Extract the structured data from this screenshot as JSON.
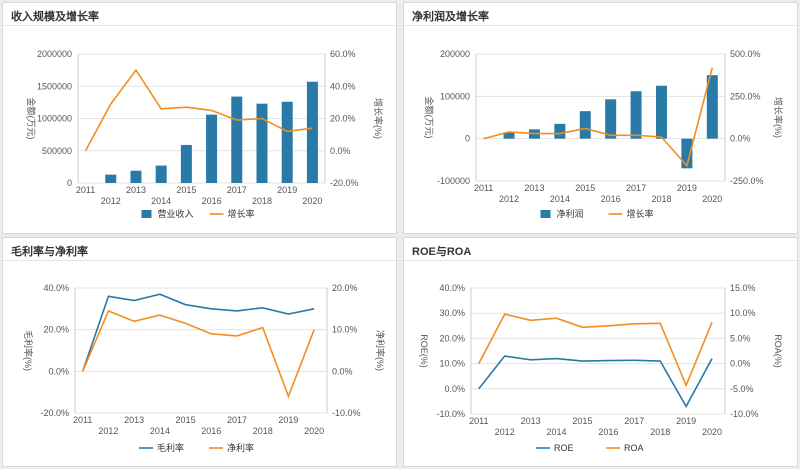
{
  "colors": {
    "bar": "#2a7aa8",
    "orange": "#f28e1e",
    "teal": "#2a7aa8",
    "grid": "#e3e3e3",
    "axis_text": "#555555"
  },
  "chart_data": [
    {
      "id": "revenue",
      "type": "bar",
      "title": "收入规模及增长率",
      "categories": [
        "2011",
        "2012",
        "2013",
        "2014",
        "2015",
        "2016",
        "2017",
        "2018",
        "2019",
        "2020"
      ],
      "series": [
        {
          "name": "营业收入",
          "kind": "bar",
          "axis": "left",
          "values": [
            0,
            130000,
            190000,
            270000,
            590000,
            1060000,
            1340000,
            1230000,
            1260000,
            1570000
          ]
        },
        {
          "name": "增长率",
          "kind": "line",
          "axis": "right",
          "values": [
            0.0,
            29.0,
            50.0,
            26.0,
            27.0,
            25.0,
            19.0,
            20.0,
            12.0,
            14.0
          ]
        }
      ],
      "y_left": {
        "label": "金额(万元)",
        "min": 0,
        "max": 2000000,
        "ticks": [
          "0",
          "500000",
          "1000000",
          "1500000",
          "2000000"
        ]
      },
      "y_right": {
        "label": "增长率(%)",
        "min": -20,
        "max": 60,
        "ticks": [
          "-20.0%",
          "0.0%",
          "20.0%",
          "40.0%",
          "60.0%"
        ]
      },
      "legend": [
        "营业收入",
        "增长率"
      ]
    },
    {
      "id": "netprofit",
      "type": "bar",
      "title": "净利润及增长率",
      "categories": [
        "2011",
        "2012",
        "2013",
        "2014",
        "2015",
        "2016",
        "2017",
        "2018",
        "2019",
        "2020"
      ],
      "series": [
        {
          "name": "净利润",
          "kind": "bar",
          "axis": "left",
          "values": [
            0,
            15000,
            22000,
            35000,
            65000,
            93000,
            112000,
            125000,
            -70000,
            150000
          ]
        },
        {
          "name": "增长率",
          "kind": "line",
          "axis": "right",
          "values": [
            0.0,
            40.0,
            30.0,
            30.0,
            60.0,
            20.0,
            20.0,
            10.0,
            -160.0,
            420.0
          ]
        }
      ],
      "y_left": {
        "label": "金额(万元)",
        "min": -100000,
        "max": 200000,
        "ticks": [
          "-100000",
          "0",
          "100000",
          "200000"
        ]
      },
      "y_right": {
        "label": "增长率(%)",
        "min": -250,
        "max": 500,
        "ticks": [
          "-250.0%",
          "0.0%",
          "250.0%",
          "500.0%"
        ]
      },
      "legend": [
        "净利润",
        "增长率"
      ]
    },
    {
      "id": "margins",
      "type": "line",
      "title": "毛利率与净利率",
      "categories": [
        "2011",
        "2012",
        "2013",
        "2014",
        "2015",
        "2016",
        "2017",
        "2018",
        "2019",
        "2020"
      ],
      "series": [
        {
          "name": "毛利率",
          "kind": "line",
          "axis": "left",
          "values": [
            0.0,
            36.0,
            34.0,
            37.0,
            32.0,
            30.0,
            29.0,
            30.5,
            27.5,
            30.0
          ]
        },
        {
          "name": "净利率",
          "kind": "line",
          "axis": "right",
          "values": [
            0.0,
            14.5,
            12.0,
            13.5,
            11.5,
            9.0,
            8.5,
            10.5,
            -6.0,
            10.0
          ]
        }
      ],
      "y_left": {
        "label": "毛利率(%)",
        "min": -20,
        "max": 40,
        "ticks": [
          "-20.0%",
          "0.0%",
          "20.0%",
          "40.0%"
        ]
      },
      "y_right": {
        "label": "净利率(%)",
        "min": -10,
        "max": 20,
        "ticks": [
          "-10.0%",
          "0.0%",
          "10.0%",
          "20.0%"
        ]
      },
      "legend": [
        "毛利率",
        "净利率"
      ]
    },
    {
      "id": "roe",
      "type": "line",
      "title": "ROE与ROA",
      "categories": [
        "2011",
        "2012",
        "2013",
        "2014",
        "2015",
        "2016",
        "2017",
        "2018",
        "2019",
        "2020"
      ],
      "series": [
        {
          "name": "ROE",
          "kind": "line",
          "axis": "left",
          "values": [
            0.0,
            13.0,
            11.5,
            12.0,
            11.0,
            11.2,
            11.3,
            11.0,
            -7.0,
            12.0
          ]
        },
        {
          "name": "ROA",
          "kind": "line",
          "axis": "right",
          "values": [
            0.0,
            9.8,
            8.6,
            9.0,
            7.2,
            7.5,
            7.9,
            8.0,
            -4.3,
            8.2
          ]
        }
      ],
      "y_left": {
        "label": "ROE(%)",
        "min": -10,
        "max": 40,
        "ticks": [
          "-10.0%",
          "0.0%",
          "10.0%",
          "20.0%",
          "30.0%",
          "40.0%"
        ]
      },
      "y_right": {
        "label": "ROA(%)",
        "min": -10,
        "max": 15,
        "ticks": [
          "-10.0%",
          "-5.0%",
          "0.0%",
          "5.0%",
          "10.0%",
          "15.0%"
        ]
      },
      "legend": [
        "ROE",
        "ROA"
      ]
    }
  ]
}
